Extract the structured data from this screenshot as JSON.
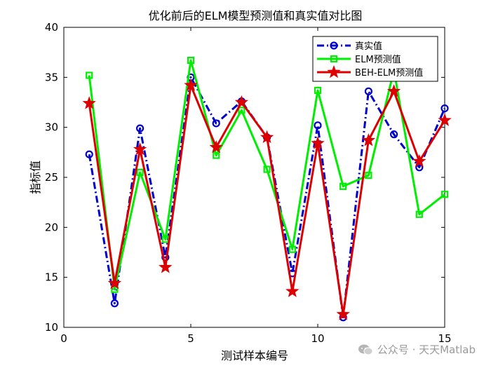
{
  "chart_data": {
    "type": "line",
    "title": "优化前后的ELM模型预测值和真实值对比图",
    "xlabel": "测试样本编号",
    "ylabel": "指标值",
    "xlim": [
      0,
      15
    ],
    "ylim": [
      10,
      40
    ],
    "xticks": [
      "0",
      "5",
      "10",
      "15"
    ],
    "yticks": [
      "10",
      "15",
      "20",
      "25",
      "30",
      "35",
      "40"
    ],
    "grid": false,
    "legend_position": "top-right",
    "x": [
      1,
      2,
      3,
      4,
      5,
      6,
      7,
      8,
      9,
      10,
      11,
      12,
      13,
      14,
      15
    ],
    "series": [
      {
        "name": "真实值",
        "color": "#0000cc",
        "line_style": "dash-dot",
        "marker": "circle",
        "values": [
          27.3,
          12.4,
          29.9,
          17.0,
          35.0,
          30.4,
          32.6,
          29.0,
          15.4,
          30.2,
          11.0,
          33.6,
          29.3,
          26.0,
          31.9
        ]
      },
      {
        "name": "ELM预测值",
        "color": "#00ee00",
        "line_style": "solid",
        "marker": "square",
        "values": [
          35.2,
          13.8,
          25.5,
          18.8,
          36.7,
          27.2,
          31.7,
          25.8,
          17.8,
          33.7,
          24.1,
          25.2,
          35.7,
          21.3,
          23.3
        ]
      },
      {
        "name": "BEH-ELM预测值",
        "color": "#dd0000",
        "line_style": "solid",
        "marker": "star",
        "values": [
          32.4,
          14.4,
          27.8,
          16.0,
          34.2,
          28.0,
          32.5,
          29.0,
          13.6,
          28.4,
          11.3,
          28.7,
          33.6,
          26.6,
          30.7
        ]
      }
    ]
  },
  "watermark": {
    "text": "公众号 · 天天Matlab",
    "icon": "wechat-icon",
    "color": "#9a9a9a"
  }
}
